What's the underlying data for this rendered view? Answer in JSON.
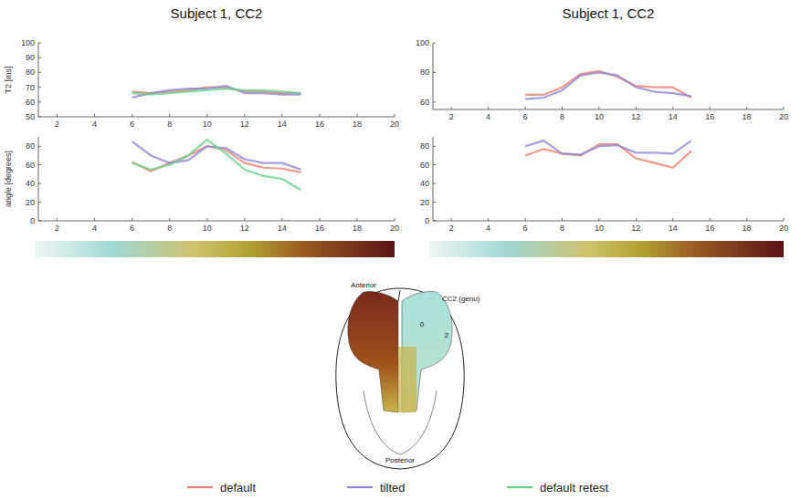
{
  "chart_data": [
    {
      "type": "line",
      "title": "Subject 1, CC2",
      "ylabel": "T2 [ms]",
      "x": [
        6,
        7,
        8,
        9,
        10,
        11,
        12,
        13,
        14,
        15
      ],
      "xlim": [
        1,
        20
      ],
      "xticks": [
        2,
        4,
        6,
        8,
        10,
        12,
        14,
        16,
        18,
        20
      ],
      "ylim": [
        50,
        100
      ],
      "yticks": [
        50,
        60,
        70,
        80,
        90,
        100
      ],
      "series": [
        {
          "name": "default",
          "color": "#ee7f6a",
          "values": [
            67,
            66,
            67,
            68,
            70,
            70,
            67,
            67,
            66,
            66
          ]
        },
        {
          "name": "tilted",
          "color": "#8f86d6",
          "values": [
            63,
            66,
            68,
            69,
            69,
            71,
            66,
            66,
            65,
            65
          ]
        },
        {
          "name": "default retest",
          "color": "#66d28a",
          "values": [
            66,
            65,
            66,
            67,
            68,
            69,
            68,
            68,
            67,
            66
          ]
        }
      ]
    },
    {
      "type": "line",
      "ylabel": "angle [degrees]",
      "x": [
        6,
        7,
        8,
        9,
        10,
        11,
        12,
        13,
        14,
        15
      ],
      "xlim": [
        1,
        20
      ],
      "xticks": [
        2,
        4,
        6,
        8,
        10,
        12,
        14,
        16,
        18,
        20
      ],
      "ylim": [
        0,
        90
      ],
      "yticks": [
        0,
        20,
        40,
        60,
        80
      ],
      "series": [
        {
          "name": "default",
          "color": "#ee7f6a",
          "values": [
            63,
            53,
            62,
            70,
            80,
            76,
            62,
            57,
            56,
            52
          ]
        },
        {
          "name": "tilted",
          "color": "#8f86d6",
          "values": [
            85,
            70,
            62,
            65,
            80,
            78,
            66,
            62,
            62,
            55
          ]
        },
        {
          "name": "default retest",
          "color": "#66d28a",
          "values": [
            62,
            55,
            60,
            70,
            87,
            72,
            55,
            48,
            45,
            33
          ]
        }
      ]
    },
    {
      "type": "line",
      "title": "Subject 1, CC2",
      "x": [
        6,
        7,
        8,
        9,
        10,
        11,
        12,
        13,
        14,
        15
      ],
      "xlim": [
        1,
        20
      ],
      "xticks": [
        2,
        4,
        6,
        8,
        10,
        12,
        14,
        16,
        18,
        20
      ],
      "ylim": [
        55,
        100
      ],
      "yticks": [
        60,
        80,
        100
      ],
      "series": [
        {
          "name": "default",
          "color": "#ee7f6a",
          "values": [
            65,
            65,
            70,
            79,
            81,
            77,
            71,
            70,
            70,
            63
          ]
        },
        {
          "name": "tilted",
          "color": "#8f86d6",
          "values": [
            62,
            63,
            68,
            78,
            80,
            78,
            70,
            67,
            66,
            64
          ]
        }
      ]
    },
    {
      "type": "line",
      "x": [
        6,
        7,
        8,
        9,
        10,
        11,
        12,
        13,
        14,
        15
      ],
      "xlim": [
        1,
        20
      ],
      "xticks": [
        2,
        4,
        6,
        8,
        10,
        12,
        14,
        16,
        18,
        20
      ],
      "ylim": [
        0,
        90
      ],
      "yticks": [
        0,
        20,
        40,
        60,
        80
      ],
      "series": [
        {
          "name": "default",
          "color": "#ee7f6a",
          "values": [
            70,
            77,
            72,
            70,
            82,
            82,
            67,
            62,
            57,
            75
          ]
        },
        {
          "name": "tilted",
          "color": "#8f86d6",
          "values": [
            80,
            86,
            72,
            71,
            80,
            81,
            73,
            73,
            72,
            86
          ]
        }
      ]
    }
  ],
  "diagram": {
    "anterior": "Anterior",
    "region": "CC2 (genu)",
    "start": "0",
    "mid": "2",
    "posterior": "Posterior"
  }
}
